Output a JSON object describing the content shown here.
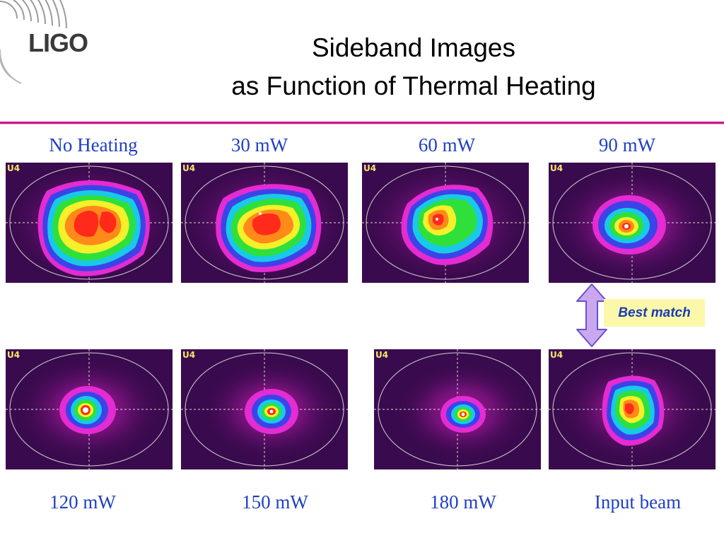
{
  "logo": {
    "text": "LIGO"
  },
  "title": {
    "line1": "Sideband Images",
    "line2": "as Function of Thermal Heating"
  },
  "colors": {
    "accent_rule": "#c8188a",
    "label_text": "#1f3fc4",
    "badge_bg": "#fcf8a9",
    "arrow_fill": "#c9a8f0"
  },
  "images": [
    {
      "label": "No Heating",
      "tag": "U4"
    },
    {
      "label": "30 mW",
      "tag": "U4"
    },
    {
      "label": "60 mW",
      "tag": "U4"
    },
    {
      "label": "90 mW",
      "tag": "U4"
    },
    {
      "label": "120 mW",
      "tag": "U4"
    },
    {
      "label": "150 mW",
      "tag": "U4"
    },
    {
      "label": "180 mW",
      "tag": "U4"
    },
    {
      "label": "Input beam",
      "tag": "U4"
    }
  ],
  "callout": {
    "text": "Best match",
    "icon": "double-arrow-vertical-icon"
  }
}
